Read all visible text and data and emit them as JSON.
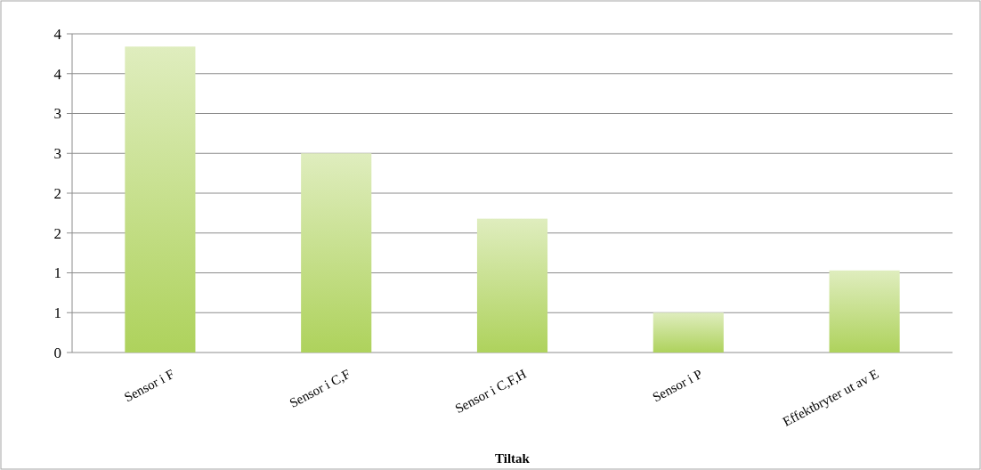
{
  "chart_data": {
    "type": "bar",
    "xlabel": "Tiltak",
    "categories": [
      "Sensor i F",
      "Sensor i C,F",
      "Sensor i C,F,H",
      "Sensor i P",
      "Effektbryter ut av E"
    ],
    "values": [
      3.84,
      2.5,
      1.68,
      0.5,
      1.03
    ],
    "color": "#aed25c",
    "ylim": [
      0,
      4
    ],
    "yticks": [
      0,
      {
        "value": 0.5,
        "label": "1"
      },
      1,
      {
        "value": 1.5,
        "label": "2"
      },
      2,
      {
        "value": 2.5,
        "label": "3"
      },
      3,
      {
        "value": 3.5,
        "label": "4"
      },
      4
    ],
    "grid": "y"
  }
}
